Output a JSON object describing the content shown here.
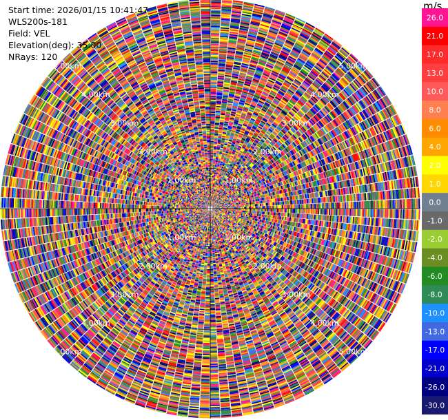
{
  "info": {
    "start_time": "Start time: 2026/01/15 10:41:47",
    "station": "WLS200s-181",
    "field": "Field: VEL",
    "elevation": "Elevation(deg): 35.00",
    "nrays": "NRays: 120"
  },
  "chart_data": {
    "type": "heatmap",
    "projection": "polar",
    "range_km_max": 5.2,
    "ring_labels": [
      "1.00km",
      "2.00km",
      "3.00km",
      "4.00km",
      "5.00km"
    ],
    "rays": 120,
    "colorbar": {
      "title": "m/s",
      "ticks": [
        "26.0",
        "21.0",
        "17.0",
        "13.0",
        "10.0",
        "8.0",
        "6.0",
        "4.0",
        "2.0",
        "1.0",
        "0.0",
        "-1.0",
        "-2.0",
        "-4.0",
        "-6.0",
        "-8.0",
        "-10.0",
        "-13.0",
        "-17.0",
        "-21.0",
        "-26.0",
        "-30.0"
      ],
      "colors": [
        "#ff1493",
        "#ff0000",
        "#ff2a2a",
        "#ff3f3f",
        "#ff5a5a",
        "#ff7f50",
        "#ff8c00",
        "#ffa500",
        "#ffff00",
        "#ffd700",
        "#708090",
        "#696969",
        "#9acd32",
        "#6b8e23",
        "#228b22",
        "#2e8b57",
        "#1e90ff",
        "#4169e1",
        "#0000ff",
        "#0000cd",
        "#000080",
        "#191970"
      ]
    }
  }
}
